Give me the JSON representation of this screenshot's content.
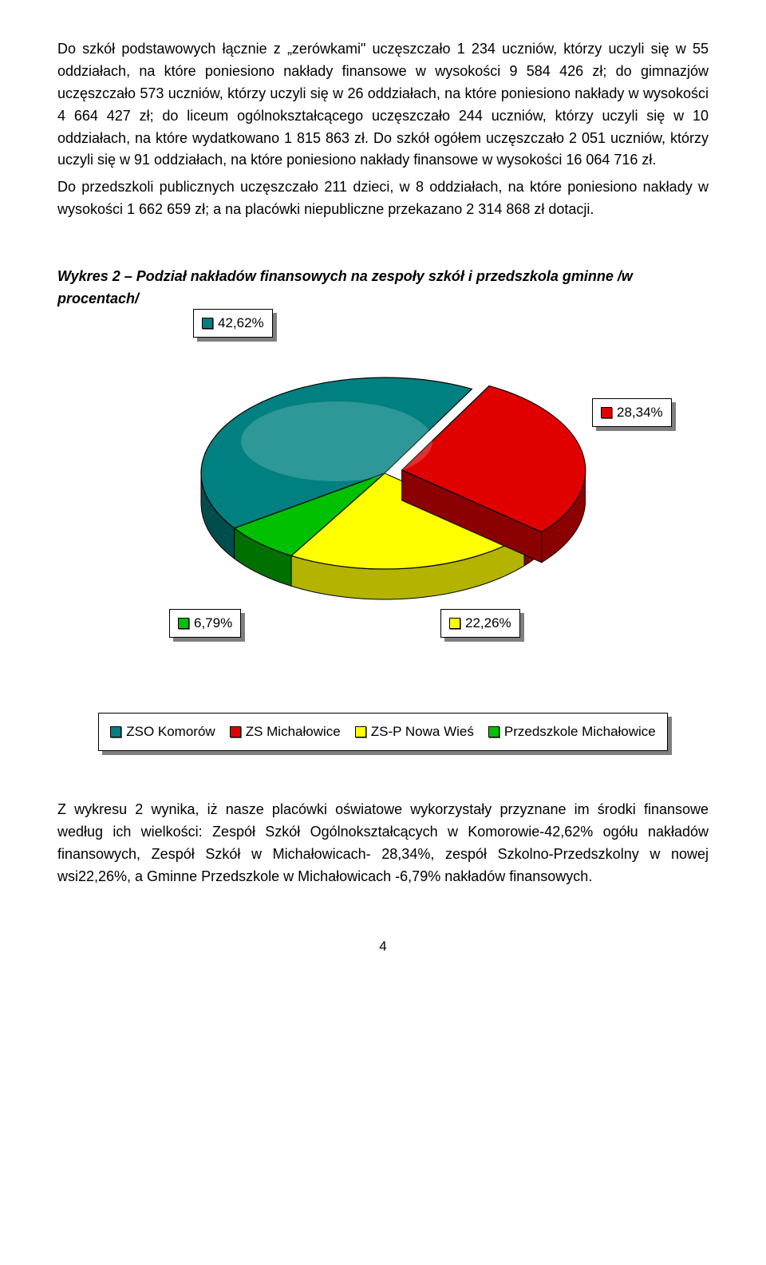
{
  "paragraphs": {
    "p1": "Do szkół podstawowych łącznie z „zerówkami\" uczęszczało 1 234 uczniów, którzy uczyli się w 55 oddziałach, na które poniesiono nakłady finansowe w wysokości 9 584 426 zł; do gimnazjów uczęszczało 573 uczniów, którzy uczyli się w 26 oddziałach, na które poniesiono nakłady w wysokości 4 664 427 zł; do liceum ogólnokształcącego uczęszczało 244 uczniów, którzy uczyli się w 10 oddziałach, na które wydatkowano 1 815 863 zł. Do szkół ogółem uczęszczało 2 051 uczniów, którzy uczyli się w 91 oddziałach, na które poniesiono nakłady finansowe w wysokości 16 064 716 zł.",
    "p2": "Do przedszkoli publicznych uczęszczało 211 dzieci, w 8 oddziałach, na które poniesiono nakłady w wysokości 1 662 659 zł; a na placówki niepubliczne przekazano 2 314 868 zł dotacji.",
    "chart_title": "Wykres 2 – Podział nakładów finansowych na zespoły szkół i przedszkola gminne /w procentach/",
    "p3": "Z wykresu 2 wynika, iż  nasze placówki oświatowe wykorzystały przyznane im środki finansowe według ich wielkości: Zespół Szkół Ogólnokształcących w Komorowie-42,62% ogółu nakładów finansowych, Zespół Szkół w Michałowicach- 28,34%,  zespół Szkolno-Przedszkolny w nowej wsi22,26%, a Gminne Przedszkole w Michałowicach -6,79% nakładów finansowych."
  },
  "chart": {
    "type": "pie-3d",
    "background_color": "#ffffff",
    "slices": [
      {
        "name": "ZSO Komorów",
        "value": 42.62,
        "label": "42,62%",
        "color": "#008080",
        "side_color": "#004d4d"
      },
      {
        "name": "ZS Michałowice",
        "value": 28.34,
        "label": "28,34%",
        "color": "#e00000",
        "side_color": "#8b0000"
      },
      {
        "name": "ZS-P Nowa Wieś",
        "value": 22.26,
        "label": "22,26%",
        "color": "#ffff00",
        "side_color": "#b3b300"
      },
      {
        "name": "Przedszkole Michałowice",
        "value": 6.79,
        "label": "6,79%",
        "color": "#00c000",
        "side_color": "#007000"
      }
    ],
    "label_boxes": {
      "border_color": "#000000",
      "shadow_color": "#7f7f7f",
      "font_size": 17
    },
    "legend": {
      "items": [
        {
          "label": "ZSO Komorów",
          "color": "#008080"
        },
        {
          "label": "ZS Michałowice",
          "color": "#e00000"
        },
        {
          "label": "ZS-P Nowa Wieś",
          "color": "#ffff00"
        },
        {
          "label": "Przedszkole Michałowice",
          "color": "#00c000"
        }
      ]
    }
  },
  "page_number": "4"
}
